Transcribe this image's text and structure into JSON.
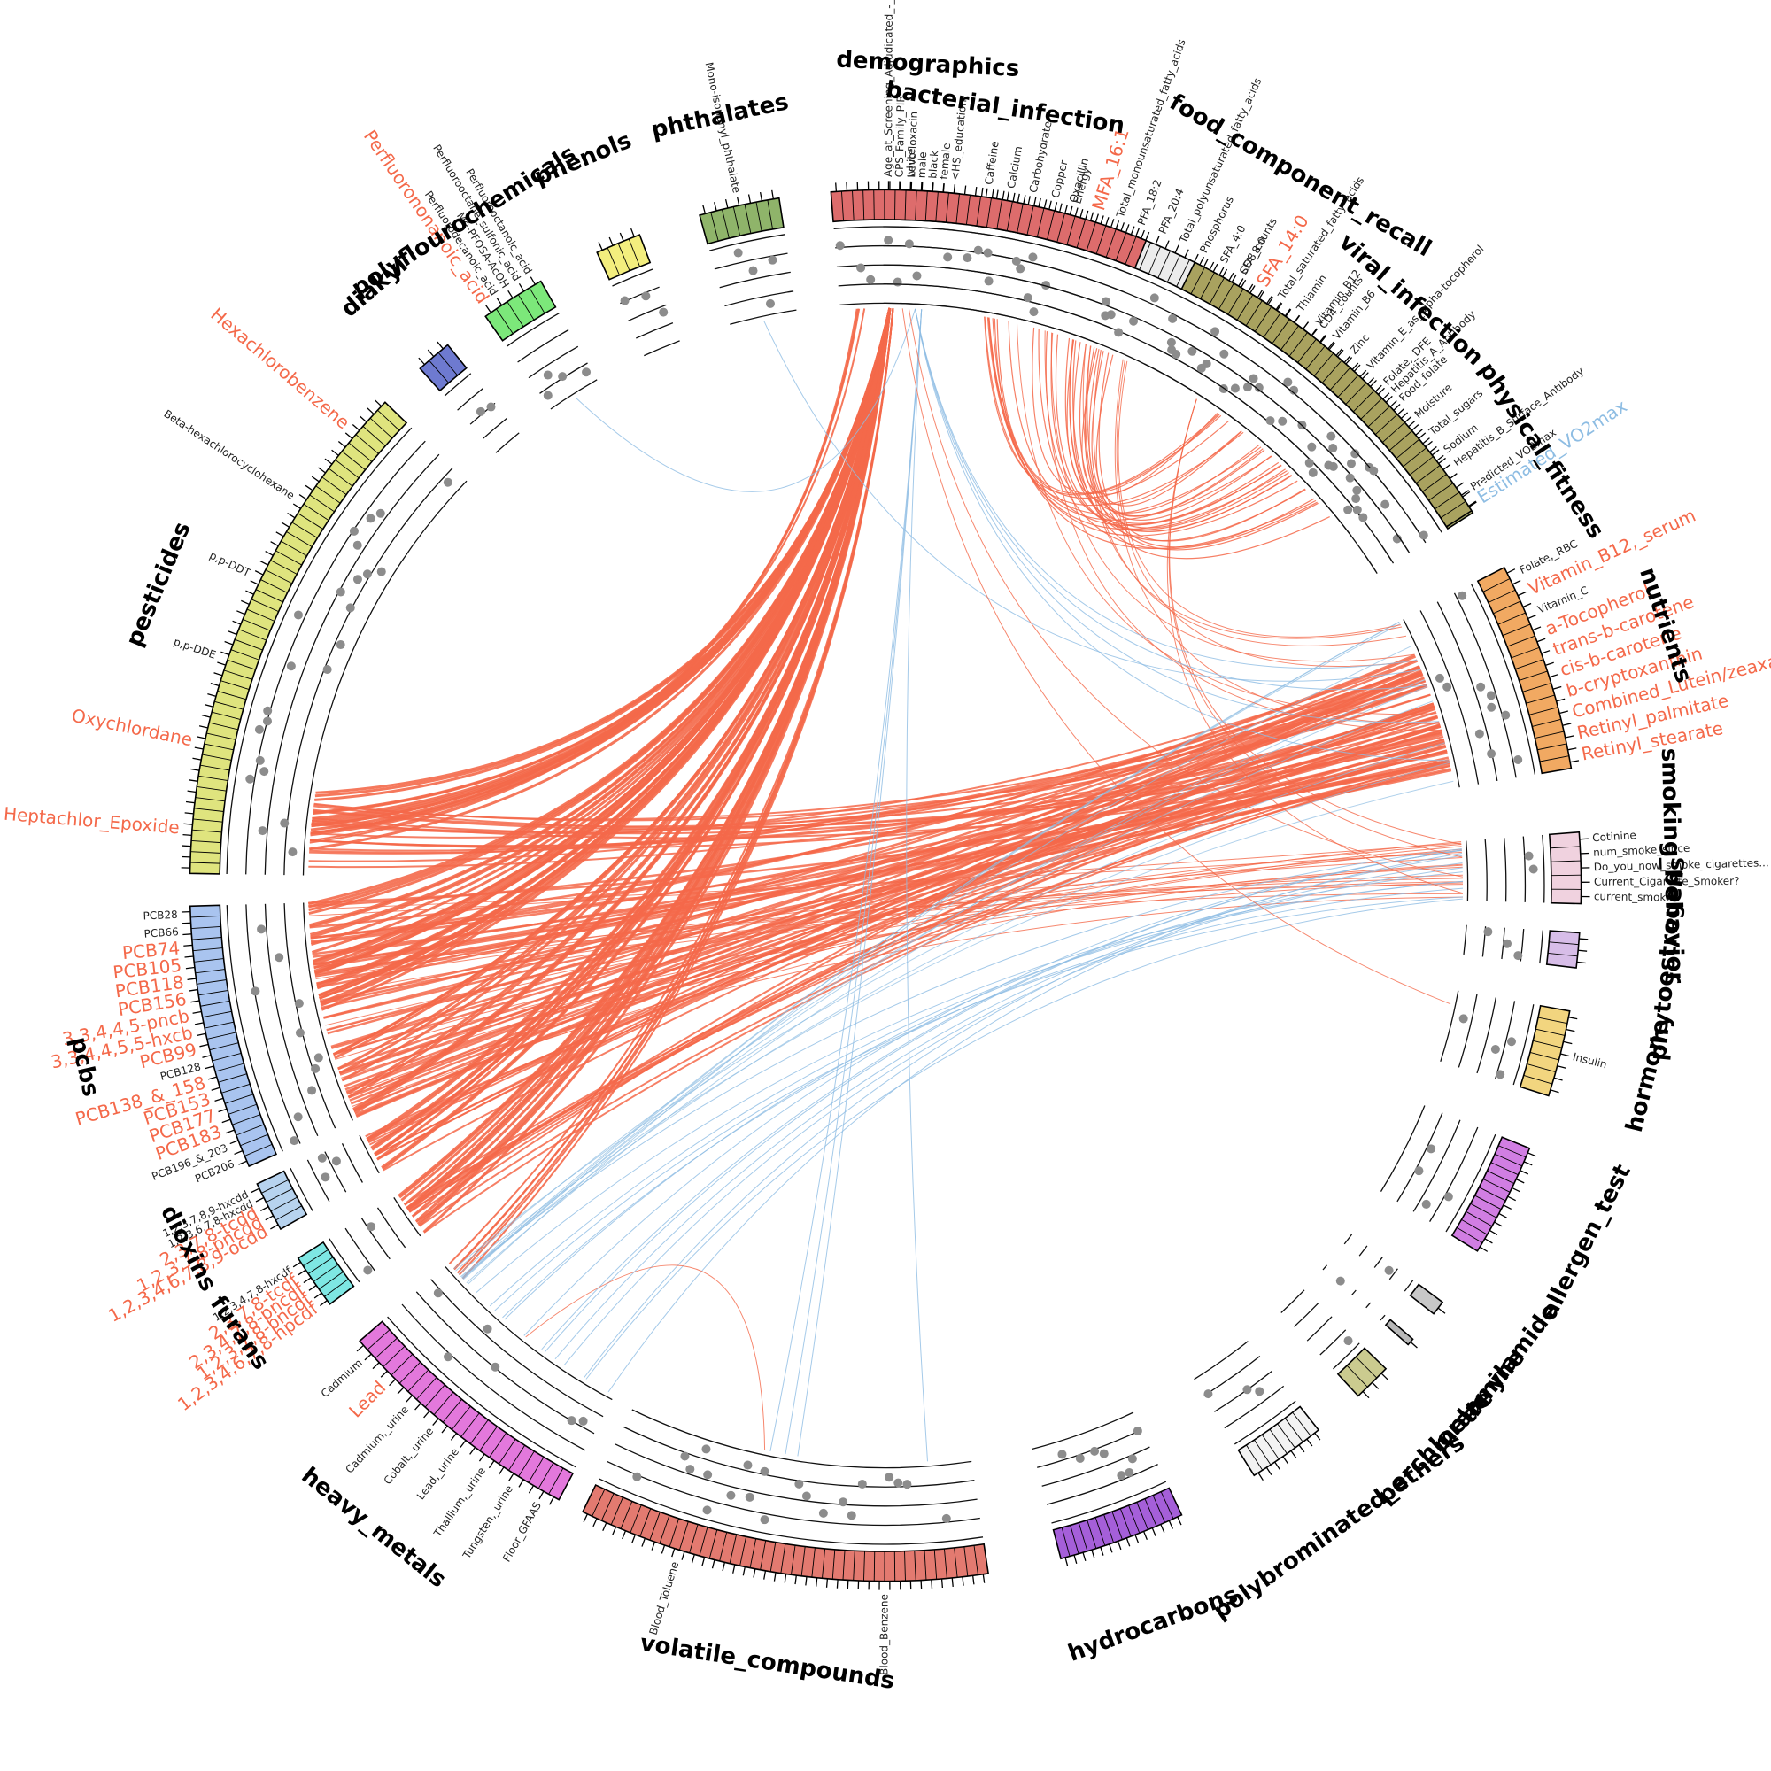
{
  "colors": {
    "positive": "#f4694a",
    "negative": "#8ebde3",
    "ring_line": "#111111",
    "dot": "#8c8c8c"
  },
  "groups": [
    {
      "name": "demographics",
      "start": 269.8,
      "end": 276.1,
      "color": "#c7ab74",
      "ticks": 7,
      "labels": [
        {
          "text": "Age_at_Screening_Adjudicated_-_Recode",
          "hl": false
        },
        {
          "text": "CPS_Family_PIR",
          "hl": false
        },
        {
          "text": "white",
          "hl": false
        },
        {
          "text": "male",
          "hl": false
        },
        {
          "text": "black",
          "hl": false
        },
        {
          "text": "female",
          "hl": false
        },
        {
          "text": "<HS_education",
          "hl": false
        }
      ]
    },
    {
      "name": "food_component_recall",
      "start": 277.5,
      "end": 323.1,
      "color": "#ececec",
      "ticks": 52,
      "labels": [
        {
          "text": "Caffeine",
          "hl": false
        },
        {
          "text": "Calcium",
          "hl": false
        },
        {
          "text": "Carbohydrate",
          "hl": false
        },
        {
          "text": "Copper",
          "hl": false
        },
        {
          "text": "Energy",
          "hl": false
        },
        {
          "text": "MFA_16:1",
          "hl": true
        },
        {
          "text": "Total_monounsaturated_fatty_acids",
          "hl": false
        },
        {
          "text": "PFA_18:2",
          "hl": false
        },
        {
          "text": "PFA_20:4",
          "hl": false
        },
        {
          "text": "Total_polyunsaturated_fatty_acids",
          "hl": false
        },
        {
          "text": "Phosphorus",
          "hl": false
        },
        {
          "text": "SFA_4:0",
          "hl": false
        },
        {
          "text": "SFA_8:0",
          "hl": false
        },
        {
          "text": "SFA_14:0",
          "hl": true
        },
        {
          "text": "Total_saturated_fatty_acids",
          "hl": false
        },
        {
          "text": "Thiamin",
          "hl": false
        },
        {
          "text": "Vitamin_B12",
          "hl": false
        },
        {
          "text": "Vitamin_B6",
          "hl": false
        },
        {
          "text": "Zinc",
          "hl": false
        },
        {
          "text": "Vitamin_E_as_alpha-tocopherol",
          "hl": false
        },
        {
          "text": "Folate,_DFE",
          "hl": false
        },
        {
          "text": "Food_folate",
          "hl": false
        },
        {
          "text": "Moisture",
          "hl": false
        },
        {
          "text": "Total_sugars",
          "hl": false
        },
        {
          "text": "Sodium",
          "hl": false
        }
      ]
    },
    {
      "name": "physical_fitness",
      "start": 325.3,
      "end": 327.6,
      "color": "#a8aa68",
      "ticks": 2,
      "labels": [
        {
          "text": "Predicted_VO2max",
          "hl": false
        },
        {
          "text": "Estimated_VO2max",
          "hl": "neg"
        }
      ]
    },
    {
      "name": "nutrients",
      "start": 332.8,
      "end": 350.3,
      "color": "#f1a962",
      "ticks": 17,
      "labels": [
        {
          "text": "Folate,_RBC",
          "hl": false
        },
        {
          "text": "Vitamin_B12,_serum",
          "hl": true
        },
        {
          "text": "Vitamin_C",
          "hl": false
        },
        {
          "text": "a-Tocopherol",
          "hl": true
        },
        {
          "text": "trans-b-carotene",
          "hl": true
        },
        {
          "text": "cis-b-carotene",
          "hl": true
        },
        {
          "text": "b-cryptoxanthin",
          "hl": true
        },
        {
          "text": "Combined_Lutein/zeaxanthin",
          "hl": true
        },
        {
          "text": "Retinyl_palmitate",
          "hl": true
        },
        {
          "text": "Retinyl_stearate",
          "hl": true
        }
      ]
    },
    {
      "name": "smoking_behavior",
      "start": 355.6,
      "end": 361.5,
      "color": "#f0d2df",
      "ticks": 5,
      "labels": [
        {
          "text": "Cotinine",
          "hl": false
        },
        {
          "text": "num_smoke_since",
          "hl": false
        },
        {
          "text": "Do_you_now_smoke_cigarettes...",
          "hl": false
        },
        {
          "text": "Current_Cigarette_Smoker?",
          "hl": false
        },
        {
          "text": "current_smoker",
          "hl": false
        }
      ]
    },
    {
      "name": "phytoestrogens",
      "start": 363.9,
      "end": 366.8,
      "color": "#d7bde8",
      "ticks": 3,
      "labels": []
    },
    {
      "name": "hormone",
      "start": 370.4,
      "end": 377.6,
      "color": "#f2d57f",
      "ticks": 7,
      "labels": [
        {
          "text": "Insulin",
          "hl": false
        }
      ]
    },
    {
      "name": "allergen_test",
      "start": 382.2,
      "end": 391.7,
      "color": "#d17ee3",
      "ticks": 12,
      "labels": []
    },
    {
      "name": "acrylamide",
      "start": 396.8,
      "end": 398.0,
      "color": "#c7c7c7",
      "ticks": 1,
      "labels": []
    },
    {
      "name": "melamine",
      "start": 400.7,
      "end": 401.3,
      "color": "#b8b8b8",
      "ticks": 1,
      "labels": []
    },
    {
      "name": "perchlorate",
      "start": 404.0,
      "end": 407.2,
      "color": "#cbcb8f",
      "ticks": 3,
      "labels": []
    },
    {
      "name": "polybrominated_ethers",
      "start": 411.5,
      "end": 418.0,
      "color": "#f3f3f3",
      "ticks": 8,
      "labels": []
    },
    {
      "name": "hydrocarbons",
      "start": 424.8,
      "end": 435.4,
      "color": "#a55fd9",
      "ticks": 14,
      "labels": []
    },
    {
      "name": "volatile_compounds",
      "start": 441.5,
      "end": 475.8,
      "color": "#e37a70",
      "ticks": 40,
      "labels": [
        {
          "text": "Blood_Benzene",
          "hl": false
        },
        {
          "text": "Blood_Toluene",
          "hl": false
        }
      ]
    },
    {
      "name": "heavy_metals",
      "start": 478.0,
      "end": 499.1,
      "color": "#e378dc",
      "ticks": 22,
      "labels": [
        {
          "text": "Floor_GFAAS",
          "hl": false
        },
        {
          "text": "Tungsten,_urine",
          "hl": false
        },
        {
          "text": "Thallium,_urine",
          "hl": false
        },
        {
          "text": "Lead,_urine",
          "hl": false
        },
        {
          "text": "Cobalt,_urine",
          "hl": false
        },
        {
          "text": "Cadmium,_urine",
          "hl": false
        },
        {
          "text": "Lead",
          "hl": true
        },
        {
          "text": "Cadmium",
          "hl": false
        }
      ]
    },
    {
      "name": "furans",
      "start": 503.0,
      "end": 507.6,
      "color": "#7ee7e3",
      "ticks": 6,
      "labels": [
        {
          "text": "1,2,3,4,6,7,8-hpcdf",
          "hl": true
        },
        {
          "text": "1,2,3,7,8-pncdf",
          "hl": true
        },
        {
          "text": "2,3,4,7,8-pncdf",
          "hl": true
        },
        {
          "text": "2,3,7,8-tcdf",
          "hl": true
        },
        {
          "text": "1,2,3,4,7,8-hxcdf",
          "hl": false
        }
      ]
    },
    {
      "name": "dioxins",
      "start": 510.4,
      "end": 514.6,
      "color": "#b7d3ef",
      "ticks": 5,
      "labels": [
        {
          "text": "1,2,3,4,6,7,8,9-ocdd",
          "hl": true
        },
        {
          "text": "1,2,3,7,8-pncdd",
          "hl": true
        },
        {
          "text": "2,3,7,8-tcdd",
          "hl": true
        },
        {
          "text": "1,2,3,6,7,8-hxcdd",
          "hl": false
        },
        {
          "text": "1,2,3,7,8,9-hxcdd",
          "hl": false
        }
      ]
    },
    {
      "name": "pcbs",
      "start": 516.2,
      "end": 538.3,
      "color": "#a9c4ef",
      "ticks": 24,
      "labels": [
        {
          "text": "PCB206",
          "hl": false
        },
        {
          "text": "PCB196_&_203",
          "hl": false
        },
        {
          "text": "PCB183",
          "hl": true
        },
        {
          "text": "PCB177",
          "hl": true
        },
        {
          "text": "PCB153",
          "hl": true
        },
        {
          "text": "PCB138_&_158",
          "hl": true
        },
        {
          "text": "PCB128",
          "hl": false
        },
        {
          "text": "PCB99",
          "hl": true
        },
        {
          "text": "3,3,4,4,5,5-hxcb",
          "hl": true
        },
        {
          "text": "3,3,4,4,5-pncb",
          "hl": true
        },
        {
          "text": "PCB156",
          "hl": true
        },
        {
          "text": "PCB118",
          "hl": true
        },
        {
          "text": "PCB105",
          "hl": true
        },
        {
          "text": "PCB74",
          "hl": true
        },
        {
          "text": "PCB66",
          "hl": false
        },
        {
          "text": "PCB28",
          "hl": false
        }
      ]
    },
    {
      "name": "pesticides",
      "start": 541.0,
      "end": 584.0,
      "color": "#dfe47e",
      "ticks": 48,
      "labels": [
        {
          "text": "Heptachlor_Epoxide",
          "hl": true
        },
        {
          "text": "Oxychlordane",
          "hl": true
        },
        {
          "text": "p,p-DDE",
          "hl": false
        },
        {
          "text": "p,p-DDT",
          "hl": false
        },
        {
          "text": "Beta-hexachlorocyclohexane",
          "hl": false
        },
        {
          "text": "Hexachlorobenzene",
          "hl": true
        }
      ]
    },
    {
      "name": "diakyl",
      "start": 588.0,
      "end": 591.0,
      "color": "#6e7ad0",
      "ticks": 3,
      "labels": []
    },
    {
      "name": "polyflourochemicals",
      "start": 594.9,
      "end": 600.3,
      "color": "#7ce87a",
      "ticks": 5,
      "labels": [
        {
          "text": "Perfluorononanoic_acid",
          "hl": true
        },
        {
          "text": "Perfluorodecanoic_acid",
          "hl": false
        },
        {
          "text": "Me-PFOSA-AcOH",
          "hl": false
        },
        {
          "text": "Perfluorooctane_sulfonic_acid",
          "hl": false
        },
        {
          "text": "Perfluorooctanoic_acid",
          "hl": false
        }
      ]
    },
    {
      "name": "phenols",
      "start": 605.5,
      "end": 609.3,
      "color": "#f3ee7e",
      "ticks": 4,
      "labels": []
    },
    {
      "name": "phthalates",
      "start": 614.5,
      "end": 621.2,
      "color": "#8fb46a",
      "ticks": 7,
      "labels": [
        {
          "text": "Mono-isononyl_phthalate",
          "hl": false
        }
      ]
    },
    {
      "name": "bacterial_infection",
      "start": 625.5,
      "end": 652.0,
      "color": "#dd6c6c",
      "ticks": 30,
      "labels": [
        {
          "text": "Levofloxacin",
          "hl": false
        },
        {
          "text": "Oxacillin",
          "hl": false
        }
      ]
    },
    {
      "name": "viral_infection",
      "start": 656.4,
      "end": 687.4,
      "color": "#a9a25f",
      "ticks": 34,
      "labels": [
        {
          "text": "CD8_counts",
          "hl": false
        },
        {
          "text": "CD4_counts",
          "hl": false
        },
        {
          "text": "Hepatitis_A_Antibody",
          "hl": false
        },
        {
          "text": "Hepatitis_B_Surface_Antibody",
          "hl": false
        }
      ]
    }
  ]
}
